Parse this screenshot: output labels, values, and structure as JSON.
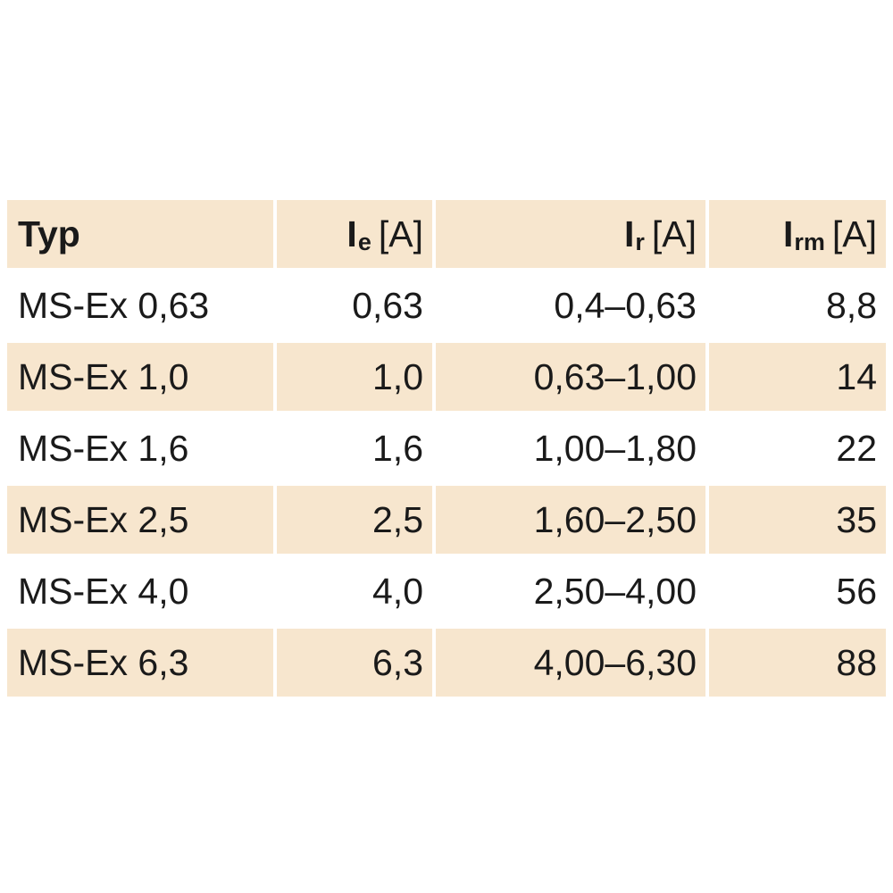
{
  "table": {
    "headers": {
      "typ": "Typ",
      "ie": {
        "symbol": "I",
        "sub": "e",
        "unit": "[A]"
      },
      "ir": {
        "symbol": "I",
        "sub": "r",
        "unit": "[A]"
      },
      "irm": {
        "symbol": "I",
        "sub": "rm",
        "unit": "[A]"
      }
    },
    "rows": [
      {
        "typ": "MS-Ex 0,63",
        "ie": "0,63",
        "ir": "0,4–0,63",
        "irm": "8,8"
      },
      {
        "typ": "MS-Ex 1,0",
        "ie": "1,0",
        "ir": "0,63–1,00",
        "irm": "14"
      },
      {
        "typ": "MS-Ex 1,6",
        "ie": "1,6",
        "ir": "1,00–1,80",
        "irm": "22"
      },
      {
        "typ": "MS-Ex 2,5",
        "ie": "2,5",
        "ir": "1,60–2,50",
        "irm": "35"
      },
      {
        "typ": "MS-Ex 4,0",
        "ie": "4,0",
        "ir": "2,50–4,00",
        "irm": "56"
      },
      {
        "typ": "MS-Ex 6,3",
        "ie": "6,3",
        "ir": "4,00–6,30",
        "irm": "88"
      }
    ]
  },
  "colors": {
    "shade": "#f7e6ce",
    "text": "#1a1a1a"
  }
}
